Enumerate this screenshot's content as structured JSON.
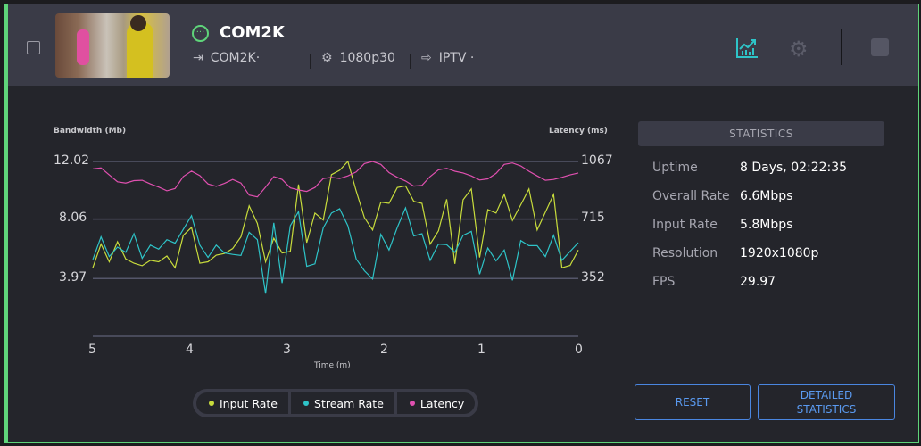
{
  "header": {
    "title": "COM2K",
    "source": "COM2K·",
    "format": "1080p30",
    "output": "IPTV ·",
    "status_color": "#5fd47a",
    "icons": {
      "status": "arrow-right-circle-icon",
      "input": "input-icon",
      "format": "settings-file-icon",
      "output": "output-icon",
      "chart": "chart-icon",
      "gear": "gear-icon",
      "stop": "stop-icon"
    }
  },
  "chart_data": {
    "type": "line",
    "xlabel": "Time (m)",
    "ylabel": "Bandwidth (Mb)",
    "y2label": "Latency (ms)",
    "xlim": [
      5,
      0
    ],
    "x_ticks": [
      "5",
      "4",
      "3",
      "2",
      "1",
      "0"
    ],
    "y_ticks": [
      "12.02",
      "8.06",
      "3.97"
    ],
    "y2_ticks": [
      "1067",
      "715",
      "352"
    ],
    "ylim": [
      0,
      12.02
    ],
    "y2lim": [
      0,
      1067
    ],
    "grid": true,
    "series": [
      {
        "name": "Input Rate",
        "color": "#c8dc3c",
        "axis": "left",
        "values": [
          4.71,
          6.34,
          5.12,
          6.5,
          5.32,
          5.02,
          4.85,
          5.22,
          5.12,
          5.52,
          4.71,
          6.94,
          7.49,
          5.02,
          5.12,
          5.58,
          5.69,
          6.03,
          6.84,
          8.97,
          7.76,
          5.12,
          6.74,
          5.73,
          5.83,
          10.44,
          6.44,
          8.47,
          8.0,
          11.11,
          11.41,
          12.02,
          9.99,
          8.16,
          7.31,
          9.22,
          9.14,
          10.23,
          10.34,
          9.28,
          9.14,
          6.34,
          7.25,
          9.42,
          4.98,
          9.38,
          10.13,
          5.42,
          8.71,
          8.47,
          9.75,
          7.96,
          9.04,
          10.13,
          7.31,
          8.53,
          9.75,
          4.71,
          4.87,
          5.93
        ]
      },
      {
        "name": "Stream Rate",
        "color": "#2ec4c8",
        "axis": "left",
        "values": [
          5.28,
          6.84,
          5.48,
          6.13,
          5.77,
          7.05,
          5.36,
          6.27,
          5.99,
          6.64,
          6.4,
          7.35,
          8.3,
          6.27,
          5.42,
          6.27,
          5.73,
          5.63,
          5.56,
          7.15,
          6.64,
          2.93,
          7.8,
          3.66,
          7.6,
          8.57,
          4.81,
          4.98,
          7.45,
          8.47,
          8.77,
          7.6,
          5.32,
          4.51,
          3.94,
          7.01,
          5.93,
          7.49,
          8.83,
          6.9,
          7.05,
          5.22,
          6.34,
          6.3,
          5.77,
          6.94,
          7.21,
          4.27,
          6.07,
          5.18,
          5.93,
          3.84,
          6.58,
          6.23,
          6.23,
          5.48,
          6.94,
          5.22,
          5.83,
          6.44
        ]
      },
      {
        "name": "Latency",
        "color": "#e050b0",
        "axis": "right",
        "values": [
          1021,
          1027,
          985,
          943,
          935,
          950,
          952,
          930,
          911,
          888,
          902,
          975,
          1008,
          981,
          930,
          915,
          933,
          957,
          935,
          862,
          851,
          911,
          975,
          957,
          906,
          893,
          884,
          908,
          963,
          970,
          963,
          979,
          1003,
          1054,
          1067,
          1049,
          999,
          970,
          948,
          917,
          921,
          975,
          1016,
          1025,
          1007,
          997,
          979,
          954,
          961,
          994,
          1049,
          1058,
          1040,
          1007,
          979,
          952,
          957,
          970,
          985,
          997
        ]
      }
    ]
  },
  "stats": {
    "title": "STATISTICS",
    "rows": [
      {
        "label": "Uptime",
        "value": "8 Days, 02:22:35"
      },
      {
        "label": "Overall Rate",
        "value": "6.6Mbps"
      },
      {
        "label": "Input Rate",
        "value": "5.8Mbps"
      },
      {
        "label": "Resolution",
        "value": "1920x1080p"
      },
      {
        "label": "FPS",
        "value": "29.97"
      }
    ]
  },
  "buttons": {
    "reset": "RESET",
    "detailed_1": "DETAILED",
    "detailed_2": "STATISTICS"
  }
}
